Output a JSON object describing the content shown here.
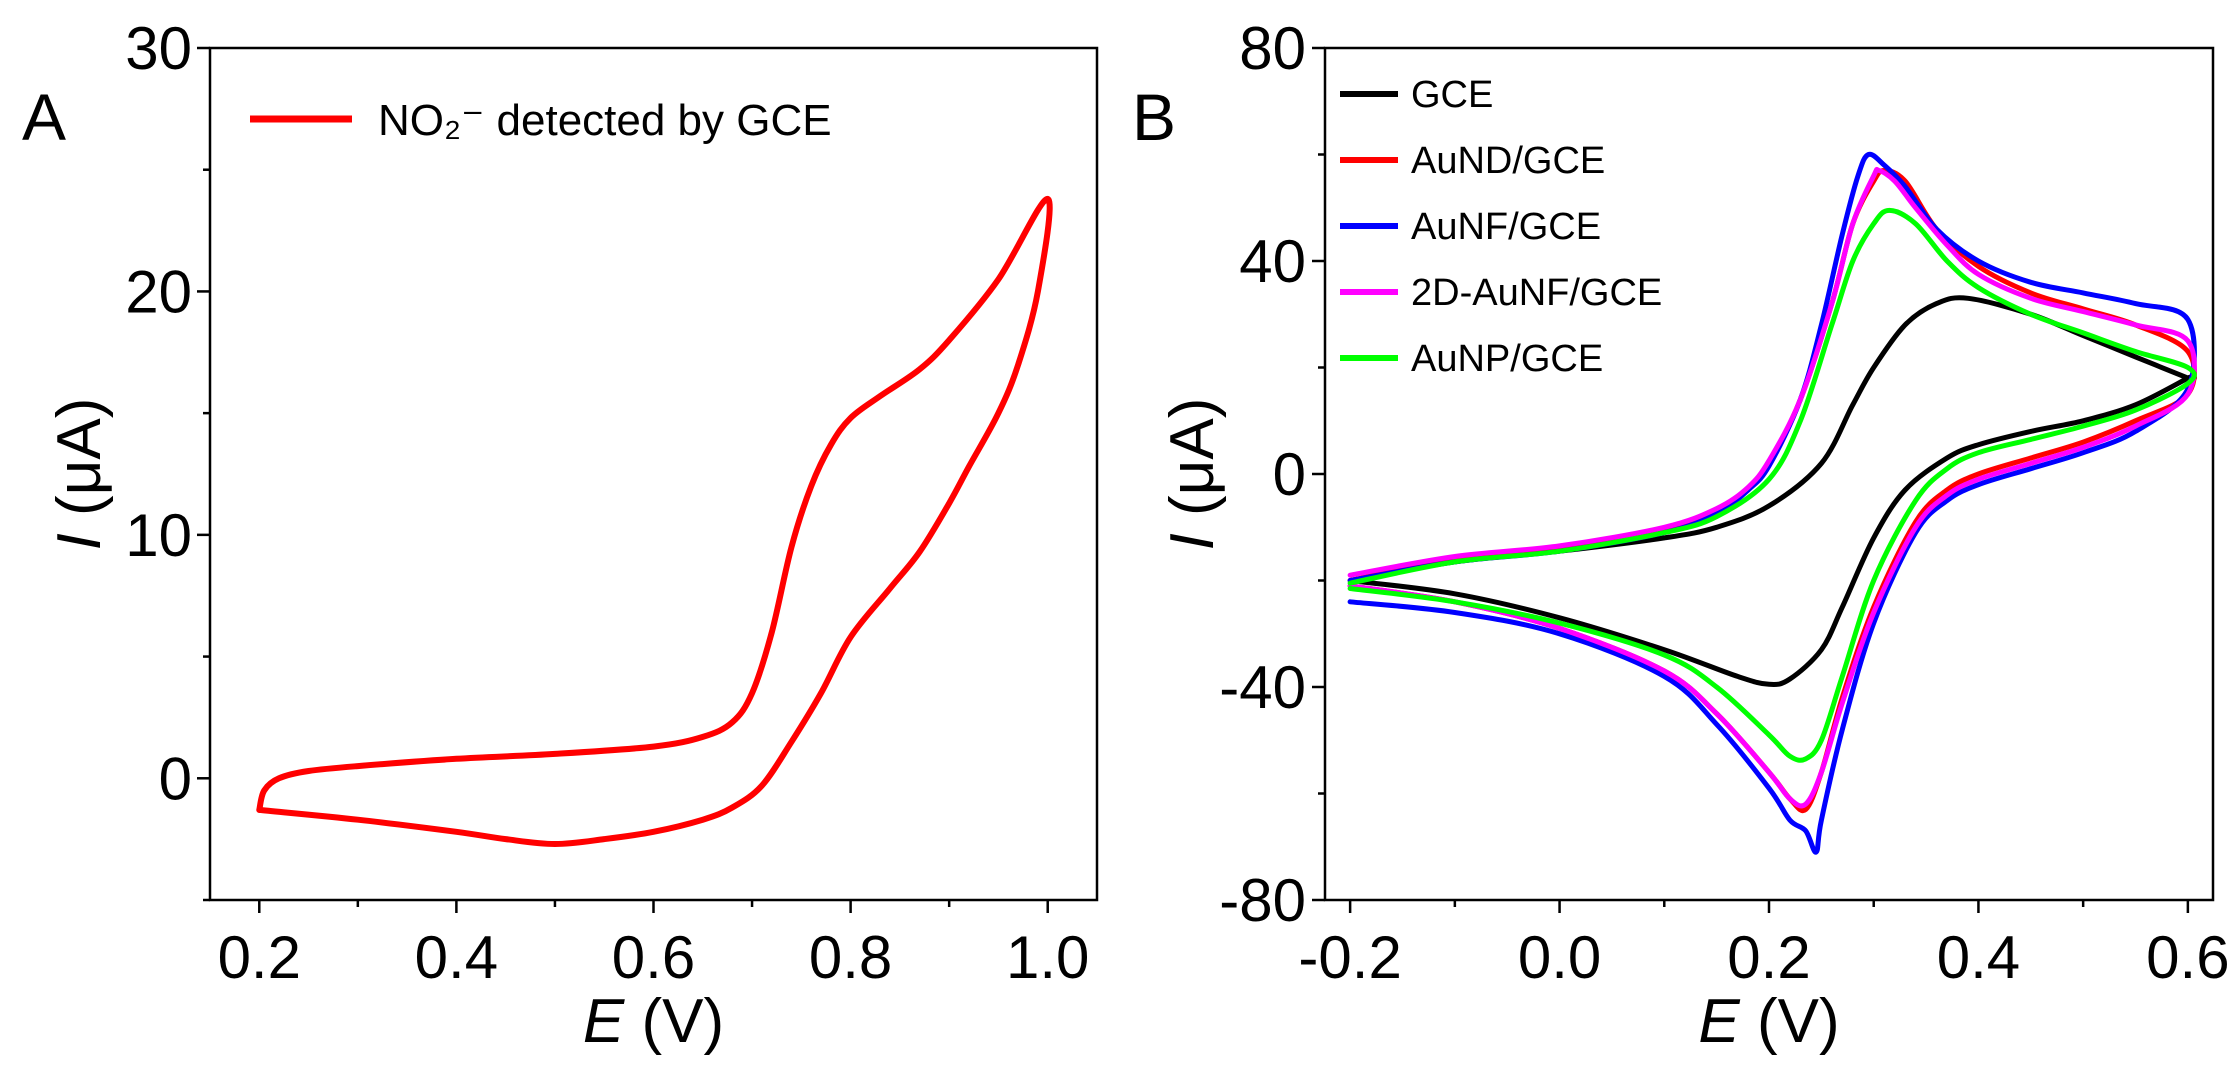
{
  "chart_data": [
    {
      "panel_label": "A",
      "type": "line",
      "xlabel_symbol": "E",
      "xlabel_unit": "(V)",
      "ylabel_symbol": "I",
      "ylabel_unit": "(μA)",
      "xlim": [
        0.15,
        1.05
      ],
      "ylim": [
        -5,
        30
      ],
      "x_ticks": [
        0.2,
        0.4,
        0.6,
        0.8,
        1.0
      ],
      "x_tick_labels": [
        "0.2",
        "0.4",
        "0.6",
        "0.8",
        "1.0"
      ],
      "x_minor": [
        0.3,
        0.5,
        0.7,
        0.9
      ],
      "y_ticks": [
        0,
        10,
        20,
        30
      ],
      "y_tick_labels": [
        "0",
        "10",
        "20",
        "30"
      ],
      "y_minor": [
        -5,
        5,
        15,
        25
      ],
      "legend_position": "top-left",
      "series": [
        {
          "name": "NO₂⁻ detected by GCE",
          "color": "#ff0000",
          "x": [
            0.2,
            0.205,
            0.22,
            0.25,
            0.3,
            0.4,
            0.5,
            0.6,
            0.65,
            0.68,
            0.7,
            0.72,
            0.74,
            0.76,
            0.78,
            0.8,
            0.83,
            0.87,
            0.9,
            0.95,
            1.0,
            0.99,
            0.97,
            0.95,
            0.92,
            0.9,
            0.87,
            0.84,
            0.8,
            0.77,
            0.74,
            0.71,
            0.68,
            0.65,
            0.6,
            0.55,
            0.5,
            0.45,
            0.4,
            0.3,
            0.2
          ],
          "y": [
            -1.3,
            -0.5,
            0,
            0.3,
            0.5,
            0.8,
            1.0,
            1.3,
            1.7,
            2.3,
            3.5,
            6,
            9.5,
            12,
            13.7,
            14.8,
            15.7,
            16.8,
            18,
            20.5,
            23.8,
            20,
            17,
            15,
            12.8,
            11.3,
            9.3,
            7.8,
            5.8,
            3.5,
            1.5,
            -0.3,
            -1.2,
            -1.7,
            -2.2,
            -2.5,
            -2.7,
            -2.5,
            -2.2,
            -1.7,
            -1.3
          ]
        }
      ]
    },
    {
      "panel_label": "B",
      "type": "line",
      "xlabel_symbol": "E",
      "xlabel_unit": "(V)",
      "ylabel_symbol": "I",
      "ylabel_unit": "(μA)",
      "xlim": [
        -0.224,
        0.624
      ],
      "ylim": [
        -80,
        80
      ],
      "x_ticks": [
        -0.2,
        0.0,
        0.2,
        0.4,
        0.6
      ],
      "x_tick_labels": [
        "-0.2",
        "0.0",
        "0.2",
        "0.4",
        "0.6"
      ],
      "x_minor": [
        -0.1,
        0.1,
        0.3,
        0.5
      ],
      "y_ticks": [
        -80,
        -40,
        0,
        40,
        80
      ],
      "y_tick_labels": [
        "-80",
        "-40",
        "0",
        "40",
        "80"
      ],
      "y_minor": [
        -60,
        -20,
        20,
        60
      ],
      "legend_position": "top-left",
      "series": [
        {
          "name": "GCE",
          "color": "#000000",
          "x": [
            -0.2,
            -0.1,
            0.0,
            0.1,
            0.15,
            0.2,
            0.25,
            0.28,
            0.3,
            0.33,
            0.36,
            0.39,
            0.45,
            0.5,
            0.55,
            0.6,
            0.6,
            0.55,
            0.5,
            0.45,
            0.4,
            0.37,
            0.33,
            0.3,
            0.27,
            0.25,
            0.22,
            0.2,
            0.17,
            0.1,
            0.0,
            -0.1,
            -0.2
          ],
          "y": [
            -20,
            -16.5,
            -14.5,
            -12,
            -10,
            -6,
            2,
            13,
            20,
            28,
            32,
            33,
            30,
            26,
            22,
            18,
            18,
            13,
            10,
            8,
            5.5,
            3,
            -3,
            -12,
            -25,
            -33,
            -38.5,
            -39.5,
            -38,
            -33,
            -27,
            -22.5,
            -20
          ]
        },
        {
          "name": "AuND/GCE",
          "color": "#ff0000",
          "x": [
            -0.2,
            -0.1,
            0.0,
            0.1,
            0.15,
            0.18,
            0.2,
            0.23,
            0.26,
            0.28,
            0.3,
            0.31,
            0.33,
            0.36,
            0.4,
            0.45,
            0.5,
            0.55,
            0.6,
            0.6,
            0.55,
            0.5,
            0.45,
            0.4,
            0.37,
            0.34,
            0.3,
            0.27,
            0.25,
            0.235,
            0.22,
            0.2,
            0.15,
            0.1,
            0.0,
            -0.1,
            -0.2
          ],
          "y": [
            -20,
            -16,
            -14,
            -10.5,
            -7,
            -3,
            2,
            14,
            32,
            47,
            55,
            57,
            55,
            46,
            39,
            34,
            31,
            28,
            23,
            15,
            10,
            6,
            3,
            0,
            -3,
            -9,
            -25,
            -42,
            -56,
            -63,
            -61,
            -56,
            -45,
            -37,
            -29,
            -24,
            -21
          ]
        },
        {
          "name": "AuNF/GCE",
          "color": "#0000ff",
          "x": [
            -0.2,
            -0.1,
            0.0,
            0.1,
            0.15,
            0.18,
            0.2,
            0.23,
            0.25,
            0.27,
            0.285,
            0.295,
            0.31,
            0.33,
            0.36,
            0.4,
            0.45,
            0.5,
            0.55,
            0.6,
            0.6,
            0.55,
            0.5,
            0.45,
            0.4,
            0.37,
            0.34,
            0.3,
            0.27,
            0.25,
            0.245,
            0.235,
            0.22,
            0.2,
            0.15,
            0.1,
            0.0,
            -0.1,
            -0.2
          ],
          "y": [
            -20,
            -16.5,
            -14.5,
            -11,
            -7.5,
            -3,
            1.5,
            14,
            28,
            45,
            56,
            60,
            58,
            54,
            46,
            40,
            36,
            34,
            32,
            29,
            16,
            8,
            4,
            1,
            -2,
            -5,
            -11,
            -28,
            -48,
            -65,
            -71,
            -67,
            -65,
            -59,
            -47,
            -38,
            -30,
            -26,
            -24
          ]
        },
        {
          "name": "2D-AuNF/GCE",
          "color": "#ff00ff",
          "x": [
            -0.2,
            -0.1,
            0.0,
            0.1,
            0.15,
            0.18,
            0.2,
            0.23,
            0.26,
            0.28,
            0.3,
            0.305,
            0.32,
            0.34,
            0.37,
            0.4,
            0.45,
            0.5,
            0.55,
            0.6,
            0.6,
            0.55,
            0.5,
            0.45,
            0.4,
            0.37,
            0.34,
            0.3,
            0.27,
            0.25,
            0.235,
            0.22,
            0.2,
            0.15,
            0.1,
            0.0,
            -0.1,
            -0.2
          ],
          "y": [
            -19,
            -15.5,
            -13.5,
            -10,
            -6.5,
            -2.5,
            2.5,
            14,
            32,
            47,
            56,
            57,
            55,
            50,
            43,
            37.5,
            33,
            30.5,
            28,
            25,
            15,
            9,
            5,
            2,
            -1,
            -4,
            -10,
            -26,
            -43,
            -56,
            -62,
            -61,
            -56,
            -45,
            -37,
            -29,
            -24,
            -21
          ]
        },
        {
          "name": "AuNP/GCE",
          "color": "#00ff00",
          "x": [
            -0.2,
            -0.1,
            0.0,
            0.1,
            0.15,
            0.2,
            0.23,
            0.26,
            0.28,
            0.3,
            0.315,
            0.34,
            0.37,
            0.4,
            0.45,
            0.5,
            0.55,
            0.6,
            0.6,
            0.55,
            0.5,
            0.45,
            0.4,
            0.37,
            0.34,
            0.3,
            0.27,
            0.25,
            0.235,
            0.22,
            0.2,
            0.15,
            0.1,
            0.0,
            -0.1,
            -0.2
          ],
          "y": [
            -20.5,
            -16.5,
            -14.5,
            -11,
            -8,
            -1,
            10,
            28,
            40,
            47,
            49.5,
            47,
            40,
            35,
            30,
            26.5,
            23,
            20,
            17,
            12,
            9,
            6.5,
            4,
            1,
            -5,
            -20,
            -38,
            -50,
            -53.5,
            -53,
            -49,
            -40,
            -34,
            -28,
            -24,
            -21.5
          ]
        }
      ]
    }
  ]
}
